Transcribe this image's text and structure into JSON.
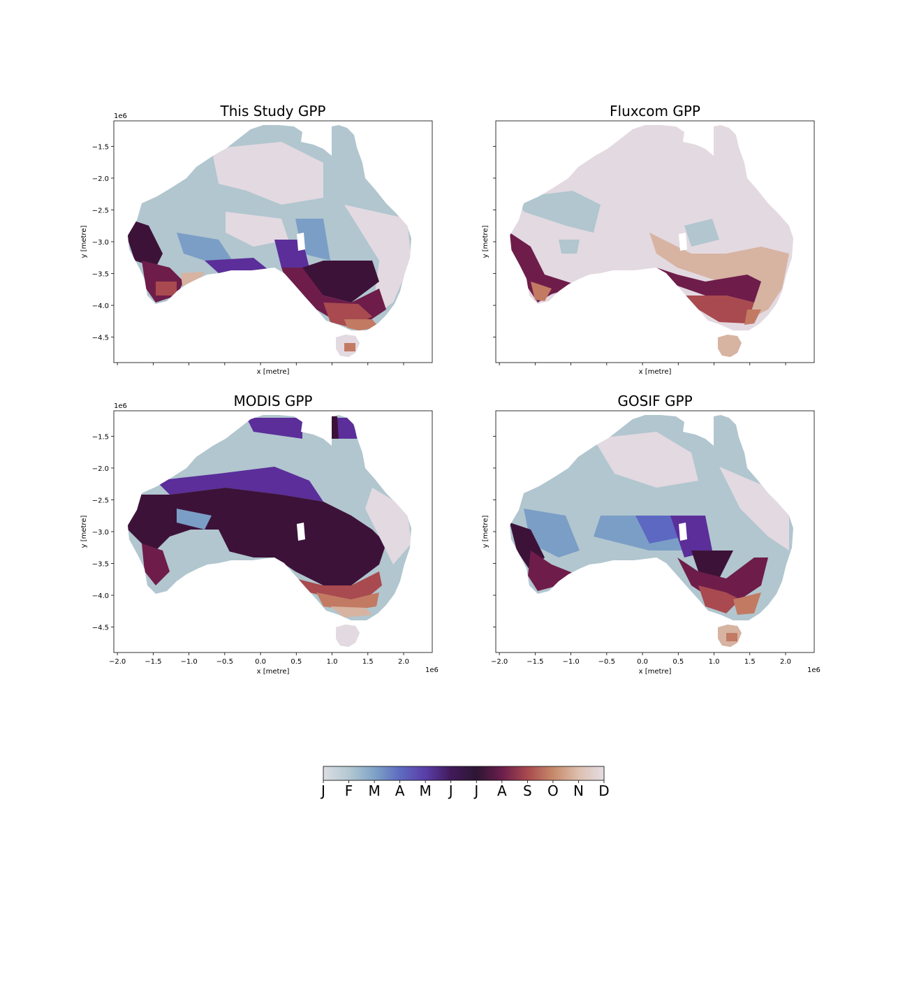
{
  "figure": {
    "colorbar": {
      "months": [
        "J",
        "F",
        "M",
        "A",
        "M",
        "J",
        "J",
        "A",
        "S",
        "O",
        "N",
        "D"
      ],
      "colors": [
        "#dcdde3",
        "#b4c8d2",
        "#7fa3c7",
        "#5e6bc0",
        "#5a3ea8",
        "#421a5a",
        "#2d1634",
        "#6b1e4c",
        "#a84a4e",
        "#c6896a",
        "#dcbfae",
        "#e4dce3"
      ]
    },
    "palette": {
      "jan": "#b1c6cf",
      "dec": "#e3d9e1",
      "feb": "#7b9ec6",
      "mar": "#5d68c2",
      "apr": "#5b2e9a",
      "jun": "#3d1239",
      "aug": "#6e1d4a",
      "sep": "#a84a4f",
      "oct": "#c27a63",
      "nov": "#d7b3a1"
    },
    "panels": [
      {
        "title": "This Study GPP",
        "xlabel": "x [metre]",
        "ylabel": "y [metre]",
        "y_offset": "1e6",
        "x_offset": "",
        "show_xticklabels": false,
        "show_ylabel": true,
        "dominant_peak_month": "January",
        "notes": "north/centre Jan (blue-grey), south-west & south-east Jun–Sep (purple-maroon), Tasmania Dec–Nov"
      },
      {
        "title": "Fluxcom GPP",
        "xlabel": "x [metre]",
        "ylabel": "y [metre]",
        "y_offset": "",
        "x_offset": "",
        "show_xticklabels": false,
        "show_ylabel": true,
        "dominant_peak_month": "December"
      },
      {
        "title": "MODIS GPP",
        "xlabel": "x [metre]",
        "ylabel": "y [metre]",
        "y_offset": "1e6",
        "x_offset": "1e6",
        "show_xticklabels": true,
        "show_ylabel": true,
        "dominant_peak_month": "June"
      },
      {
        "title": "GOSIF GPP",
        "xlabel": "x [metre]",
        "ylabel": "y [metre]",
        "y_offset": "",
        "x_offset": "1e6",
        "show_xticklabels": true,
        "show_ylabel": true,
        "dominant_peak_month": "January"
      }
    ],
    "axes": {
      "xticks": [
        "−2.0",
        "−1.5",
        "−1.0",
        "−0.5",
        "0.0",
        "0.5",
        "1.0",
        "1.5",
        "2.0"
      ],
      "xtick_values": [
        -2.0,
        -1.5,
        -1.0,
        -0.5,
        0.0,
        0.5,
        1.0,
        1.5,
        2.0
      ],
      "yticks": [
        "−1.5",
        "−2.0",
        "−2.5",
        "−3.0",
        "−3.5",
        "−4.0",
        "−4.5"
      ],
      "ytick_values": [
        -1.5,
        -2.0,
        -2.5,
        -3.0,
        -3.5,
        -4.0,
        -4.5
      ],
      "xlim": [
        -2.05,
        2.4
      ],
      "ylim": [
        -4.9,
        -1.1
      ]
    }
  }
}
